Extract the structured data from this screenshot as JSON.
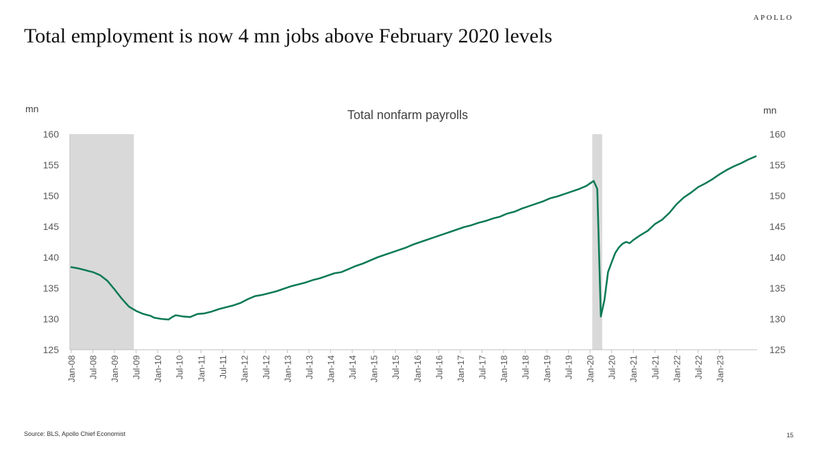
{
  "header": {
    "brand": "APOLLO",
    "title": "Total employment is now 4 mn jobs above February 2020 levels"
  },
  "footer": {
    "source": "Source: BLS, Apollo Chief Economist",
    "page_number": "15"
  },
  "chart_data": {
    "type": "line",
    "title": "Total nonfarm payrolls",
    "ylabel_left": "mn",
    "ylabel_right": "mn",
    "ylim": [
      125,
      160
    ],
    "yticks": [
      125,
      130,
      135,
      140,
      145,
      150,
      155,
      160
    ],
    "xticks": [
      "Jan-08",
      "Jul-08",
      "Jan-09",
      "Jul-09",
      "Jan-10",
      "Jul-10",
      "Jan-11",
      "Jul-11",
      "Jan-12",
      "Jul-12",
      "Jan-13",
      "Jul-13",
      "Jan-14",
      "Jul-14",
      "Jan-15",
      "Jul-15",
      "Jan-16",
      "Jul-16",
      "Jan-17",
      "Jul-17",
      "Jan-18",
      "Jul-18",
      "Jan-19",
      "Jul-19",
      "Jan-20",
      "Jul-20",
      "Jan-21",
      "Jul-21",
      "Jan-22",
      "Jul-22",
      "Jan-23"
    ],
    "grid": false,
    "recession_shading": [
      {
        "start": "Jan-08",
        "end": "Jun-09"
      },
      {
        "start": "Feb-20",
        "end": "Apr-20"
      }
    ],
    "colors": {
      "line": "#0b7a55",
      "shading": "#d9d9d9",
      "axis": "#bfbfbf",
      "text": "#595959"
    },
    "series": [
      {
        "points": [
          [
            "Jan-08",
            138.4
          ],
          [
            "Mar-08",
            138.2
          ],
          [
            "May-08",
            137.9
          ],
          [
            "Jul-08",
            137.6
          ],
          [
            "Sep-08",
            137.1
          ],
          [
            "Nov-08",
            136.2
          ],
          [
            "Jan-09",
            134.8
          ],
          [
            "Mar-09",
            133.3
          ],
          [
            "May-09",
            132.0
          ],
          [
            "Jul-09",
            131.3
          ],
          [
            "Sep-09",
            130.8
          ],
          [
            "Nov-09",
            130.5
          ],
          [
            "Dec-09",
            130.2
          ],
          [
            "Feb-10",
            130.0
          ],
          [
            "Apr-10",
            129.9
          ],
          [
            "May-10",
            130.3
          ],
          [
            "Jun-10",
            130.6
          ],
          [
            "Aug-10",
            130.4
          ],
          [
            "Oct-10",
            130.3
          ],
          [
            "Dec-10",
            130.8
          ],
          [
            "Feb-11",
            130.9
          ],
          [
            "Apr-11",
            131.2
          ],
          [
            "Jun-11",
            131.6
          ],
          [
            "Aug-11",
            131.9
          ],
          [
            "Oct-11",
            132.2
          ],
          [
            "Dec-11",
            132.6
          ],
          [
            "Feb-12",
            133.2
          ],
          [
            "Apr-12",
            133.7
          ],
          [
            "Jun-12",
            133.9
          ],
          [
            "Aug-12",
            134.2
          ],
          [
            "Oct-12",
            134.5
          ],
          [
            "Dec-12",
            134.9
          ],
          [
            "Feb-13",
            135.3
          ],
          [
            "Apr-13",
            135.6
          ],
          [
            "Jun-13",
            135.9
          ],
          [
            "Aug-13",
            136.3
          ],
          [
            "Oct-13",
            136.6
          ],
          [
            "Dec-13",
            137.0
          ],
          [
            "Feb-14",
            137.4
          ],
          [
            "Apr-14",
            137.6
          ],
          [
            "Jun-14",
            138.1
          ],
          [
            "Aug-14",
            138.6
          ],
          [
            "Oct-14",
            139.0
          ],
          [
            "Dec-14",
            139.5
          ],
          [
            "Feb-15",
            140.0
          ],
          [
            "Apr-15",
            140.4
          ],
          [
            "Jun-15",
            140.8
          ],
          [
            "Aug-15",
            141.2
          ],
          [
            "Oct-15",
            141.6
          ],
          [
            "Dec-15",
            142.1
          ],
          [
            "Feb-16",
            142.5
          ],
          [
            "Apr-16",
            142.9
          ],
          [
            "Jun-16",
            143.3
          ],
          [
            "Aug-16",
            143.7
          ],
          [
            "Oct-16",
            144.1
          ],
          [
            "Dec-16",
            144.5
          ],
          [
            "Feb-17",
            144.9
          ],
          [
            "Apr-17",
            145.2
          ],
          [
            "Jun-17",
            145.6
          ],
          [
            "Aug-17",
            145.9
          ],
          [
            "Oct-17",
            146.3
          ],
          [
            "Dec-17",
            146.6
          ],
          [
            "Feb-18",
            147.1
          ],
          [
            "Apr-18",
            147.4
          ],
          [
            "Jun-18",
            147.9
          ],
          [
            "Aug-18",
            148.3
          ],
          [
            "Oct-18",
            148.7
          ],
          [
            "Dec-18",
            149.1
          ],
          [
            "Feb-19",
            149.6
          ],
          [
            "Apr-19",
            149.9
          ],
          [
            "Jun-19",
            150.3
          ],
          [
            "Aug-19",
            150.7
          ],
          [
            "Oct-19",
            151.1
          ],
          [
            "Dec-19",
            151.6
          ],
          [
            "Jan-20",
            152.0
          ],
          [
            "Feb-20",
            152.4
          ],
          [
            "Mar-20",
            151.1
          ],
          [
            "Apr-20",
            130.4
          ],
          [
            "May-20",
            133.1
          ],
          [
            "Jun-20",
            137.6
          ],
          [
            "Jul-20",
            139.2
          ],
          [
            "Aug-20",
            140.7
          ],
          [
            "Sep-20",
            141.6
          ],
          [
            "Oct-20",
            142.2
          ],
          [
            "Nov-20",
            142.5
          ],
          [
            "Dec-20",
            142.3
          ],
          [
            "Jan-21",
            142.8
          ],
          [
            "Mar-21",
            143.6
          ],
          [
            "May-21",
            144.3
          ],
          [
            "Jul-21",
            145.4
          ],
          [
            "Sep-21",
            146.1
          ],
          [
            "Nov-21",
            147.2
          ],
          [
            "Jan-22",
            148.6
          ],
          [
            "Mar-22",
            149.7
          ],
          [
            "May-22",
            150.5
          ],
          [
            "Jul-22",
            151.4
          ],
          [
            "Sep-22",
            152.0
          ],
          [
            "Nov-22",
            152.7
          ],
          [
            "Jan-23",
            153.5
          ],
          [
            "Mar-23",
            154.2
          ],
          [
            "May-23",
            154.8
          ],
          [
            "Jul-23",
            155.3
          ],
          [
            "Sep-23",
            155.9
          ],
          [
            "Nov-23",
            156.4
          ]
        ]
      }
    ]
  }
}
